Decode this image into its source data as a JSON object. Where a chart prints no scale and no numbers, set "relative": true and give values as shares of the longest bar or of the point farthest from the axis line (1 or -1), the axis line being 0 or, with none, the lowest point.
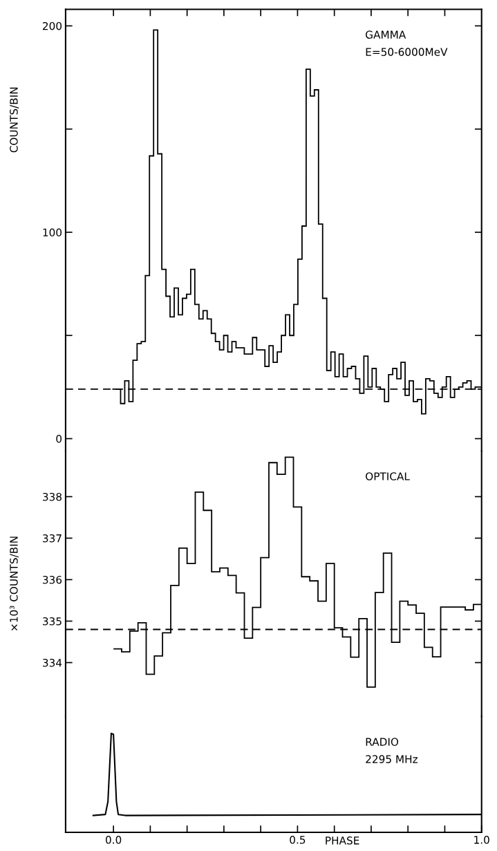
{
  "chart_data": [
    {
      "type": "histogram",
      "ylabel": "COUNTS/BIN",
      "annotations": [
        "GAMMA",
        "E=50-6000MeV"
      ],
      "color": "#000000",
      "bins": [
        -0.003,
        0.0082,
        0.0194,
        0.0306,
        0.0418,
        0.053,
        0.0642,
        0.0754,
        0.0866,
        0.0978,
        0.109,
        0.1202,
        0.1314,
        0.1426,
        0.1538,
        0.165,
        0.1762,
        0.1874,
        0.1986,
        0.2098,
        0.221,
        0.2322,
        0.2434,
        0.2546,
        0.2658,
        0.277,
        0.2882,
        0.2994,
        0.3106,
        0.3218,
        0.333,
        0.3442,
        0.3554,
        0.3666,
        0.3778,
        0.389,
        0.4002,
        0.4114,
        0.4226,
        0.4338,
        0.445,
        0.4562,
        0.4674,
        0.4786,
        0.4898,
        0.501,
        0.5122,
        0.5234,
        0.5346,
        0.5458,
        0.557,
        0.5682,
        0.5794,
        0.5906,
        0.6018,
        0.613,
        0.6242,
        0.6354,
        0.6466,
        0.6578,
        0.669,
        0.6802,
        0.6914,
        0.7026,
        0.7138,
        0.725,
        0.7362,
        0.7474,
        0.7586,
        0.7698,
        0.781,
        0.7922,
        0.8034,
        0.8146,
        0.8258,
        0.837,
        0.8482,
        0.8594,
        0.8706,
        0.8818,
        0.893,
        0.9042,
        0.9154,
        0.9266,
        0.9378,
        0.949,
        0.9602,
        0.9714,
        0.9826,
        1.0
      ],
      "values": [
        24,
        24,
        17,
        28,
        18,
        38,
        46,
        47,
        79,
        137,
        198,
        138,
        82,
        69,
        59,
        73,
        60,
        68,
        70,
        82,
        65,
        58,
        62,
        58,
        51,
        47,
        43,
        50,
        42,
        47,
        44,
        44,
        41,
        41,
        49,
        43,
        43,
        35,
        45,
        37,
        42,
        50,
        60,
        50,
        65,
        87,
        103,
        179,
        166,
        169,
        104,
        68,
        33,
        42,
        30,
        41,
        30,
        34,
        35,
        29,
        22,
        40,
        25,
        34,
        25,
        24,
        18,
        31,
        34,
        29,
        37,
        21,
        28,
        18,
        19,
        12,
        29,
        28,
        22,
        20,
        25,
        30,
        20,
        24,
        25,
        27,
        28,
        24,
        25
      ],
      "ref_lines": [
        {
          "axis": "y",
          "value": 24,
          "line_style": "dashed",
          "color": "#000000"
        }
      ],
      "xlim": [
        -0.13,
        1.0
      ],
      "ylim": [
        -6,
        208
      ],
      "xticks": [
        {
          "value": 0,
          "label": null
        },
        {
          "value": 0.1,
          "label": null
        },
        {
          "value": 0.2,
          "label": null
        },
        {
          "value": 0.3,
          "label": null
        },
        {
          "value": 0.4,
          "label": null
        },
        {
          "value": 0.5,
          "label": null
        },
        {
          "value": 0.6,
          "label": null
        },
        {
          "value": 0.7,
          "label": null
        },
        {
          "value": 0.8,
          "label": null
        },
        {
          "value": 0.9,
          "label": null
        }
      ],
      "yticks": [
        0,
        {
          "value": 50,
          "label": null
        },
        100,
        {
          "value": 150,
          "label": null
        },
        200
      ],
      "tick_labels": "y",
      "grid": false,
      "legend": false
    },
    {
      "type": "histogram",
      "ylabel": "×10³ COUNTS/BIN",
      "annotations": [
        "OPTICAL"
      ],
      "color": "#000000",
      "bins": [
        0,
        0.0222,
        0.0444,
        0.0667,
        0.0889,
        0.1111,
        0.1333,
        0.1556,
        0.1778,
        0.2,
        0.2222,
        0.2444,
        0.2667,
        0.2889,
        0.3111,
        0.3333,
        0.3556,
        0.3778,
        0.4,
        0.4222,
        0.4444,
        0.4667,
        0.4889,
        0.5111,
        0.5333,
        0.5556,
        0.5778,
        0.6,
        0.6222,
        0.6444,
        0.6667,
        0.6889,
        0.7111,
        0.7333,
        0.7556,
        0.7778,
        0.8,
        0.8222,
        0.8444,
        0.8667,
        0.8889,
        0.9111,
        0.9333,
        0.9556,
        0.9778,
        1.0
      ],
      "values": [
        334.33,
        334.26,
        334.76,
        334.96,
        333.72,
        334.16,
        334.72,
        335.86,
        336.76,
        336.39,
        338.11,
        337.67,
        336.19,
        336.28,
        336.1,
        335.68,
        334.59,
        335.33,
        336.53,
        338.82,
        338.54,
        338.95,
        337.75,
        336.07,
        335.97,
        335.48,
        336.39,
        334.84,
        334.62,
        334.13,
        335.06,
        333.41,
        335.69,
        336.64,
        334.49,
        335.48,
        335.39,
        335.19,
        334.37,
        334.14,
        335.34,
        335.34,
        335.34,
        335.27,
        335.4
      ],
      "ref_lines": [
        {
          "axis": "y",
          "value": 334.8,
          "line_style": "dashed",
          "color": "#000000"
        }
      ],
      "xlim": [
        -0.13,
        1.0
      ],
      "ylim": [
        332.7,
        339.1
      ],
      "yticks": [
        334,
        335,
        336,
        337,
        338
      ],
      "tick_labels": "y",
      "grid": false,
      "legend": false
    },
    {
      "type": "line",
      "relative": true,
      "xlabel": "PHASE",
      "annotations": [
        "RADIO",
        "2295 MHz"
      ],
      "color": "#000000",
      "x": [
        -0.055,
        -0.022,
        -0.015,
        -0.006,
        0.0,
        0.008,
        0.013,
        0.032,
        0.998
      ],
      "values": [
        0.17,
        0.18,
        0.31,
        1.0,
        0.99,
        0.31,
        0.18,
        0.17,
        0.18
      ],
      "xlim": [
        -0.13,
        1.0
      ],
      "xticks": [
        {
          "value": 0,
          "label": "0.0"
        },
        {
          "value": 0.1,
          "label": null
        },
        {
          "value": 0.2,
          "label": null
        },
        {
          "value": 0.3,
          "label": null
        },
        {
          "value": 0.4,
          "label": null
        },
        {
          "value": 0.5,
          "label": "0.5"
        },
        {
          "value": 0.6,
          "label": null
        },
        {
          "value": 0.7,
          "label": null
        },
        {
          "value": 0.8,
          "label": null
        },
        {
          "value": 0.9,
          "label": null
        },
        {
          "value": 1.0,
          "label": "1.0"
        }
      ],
      "tick_labels": "x",
      "grid": false,
      "legend": false,
      "marker": "none",
      "line_style": "solid"
    }
  ]
}
